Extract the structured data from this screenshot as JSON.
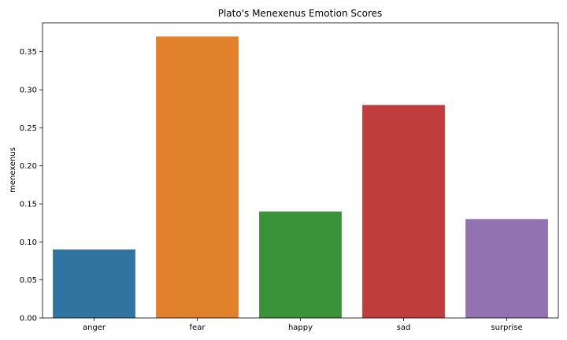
{
  "chart_data": {
    "type": "bar",
    "title": "Plato's Menexenus Emotion Scores",
    "xlabel": "",
    "ylabel": "menexenus",
    "categories": [
      "anger",
      "fear",
      "happy",
      "sad",
      "surprise"
    ],
    "values": [
      0.09,
      0.37,
      0.14,
      0.28,
      0.13
    ],
    "colors": [
      "#3274a1",
      "#e1812c",
      "#3a923a",
      "#c03d3e",
      "#9372b2"
    ],
    "ylim": [
      0,
      0.388
    ],
    "yticks": [
      "0.00",
      "0.05",
      "0.10",
      "0.15",
      "0.20",
      "0.25",
      "0.30",
      "0.35"
    ],
    "grid": false,
    "legend": "none"
  }
}
